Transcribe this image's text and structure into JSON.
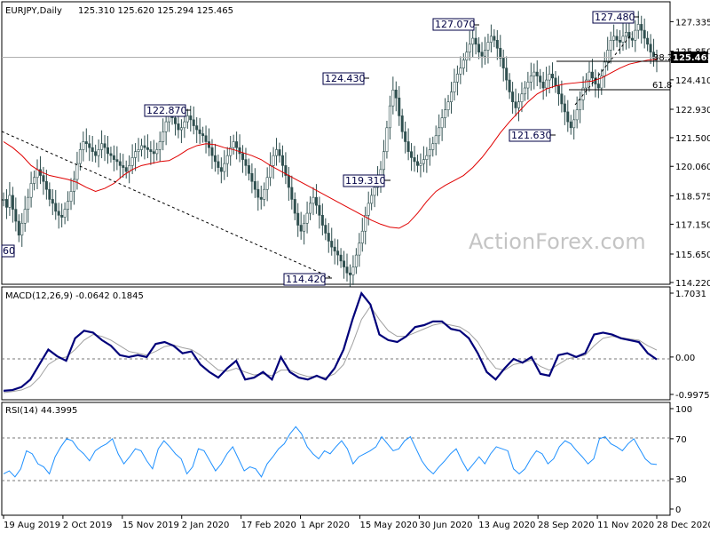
{
  "watermark": "ActionForex.com",
  "chart_data": [
    {
      "type": "candlestick",
      "title": "EURJPY,Daily",
      "ohlc_header": "125.310 125.620 125.294 125.465",
      "ylim": [
        114.22,
        128.2
      ],
      "yticks": [
        114.22,
        115.65,
        117.15,
        118.575,
        120.06,
        121.5,
        122.93,
        124.41,
        125.85,
        127.335
      ],
      "ytick_labels": [
        "114.220",
        "115.650",
        "117.150",
        "118.575",
        "120.060",
        "121.500",
        "122.930",
        "124.410",
        "125.850",
        "127.335"
      ],
      "last_price": 125.465,
      "last_price_label": "125.465",
      "xtick_labels": [
        "19 Aug 2019",
        "2 Oct 2019",
        "15 Nov 2019",
        "2 Jan 2020",
        "17 Feb 2020",
        "1 Apr 2020",
        "15 May 2020",
        "30 Jun 2020",
        "13 Aug 2020",
        "28 Sep 2020",
        "11 Nov 2020",
        "28 Dec 2020"
      ],
      "close_series": [
        118.4,
        118.0,
        118.6,
        117.9,
        117.3,
        116.6,
        117.2,
        117.9,
        118.5,
        119.2,
        119.5,
        119.9,
        119.6,
        119.3,
        118.9,
        118.4,
        118.2,
        117.8,
        117.6,
        117.5,
        117.9,
        118.3,
        118.8,
        119.4,
        120.2,
        120.9,
        121.3,
        121.2,
        121.0,
        120.8,
        120.6,
        120.9,
        121.2,
        121.0,
        120.7,
        120.6,
        120.4,
        120.3,
        120.1,
        120.0,
        119.8,
        120.1,
        120.5,
        120.8,
        120.9,
        121.1,
        121.0,
        120.9,
        120.8,
        120.7,
        120.9,
        121.3,
        121.8,
        122.3,
        122.6,
        122.5,
        122.2,
        121.9,
        122.0,
        122.3,
        122.6,
        122.4,
        122.1,
        121.9,
        121.7,
        121.6,
        121.3,
        121.0,
        120.6,
        120.3,
        120.0,
        119.8,
        120.2,
        120.6,
        121.0,
        121.3,
        121.0,
        120.7,
        120.4,
        120.1,
        119.7,
        119.3,
        118.9,
        118.5,
        118.4,
        118.9,
        119.5,
        120.1,
        120.6,
        120.9,
        120.6,
        120.1,
        119.6,
        119.0,
        118.4,
        117.7,
        117.1,
        116.8,
        117.2,
        117.7,
        118.2,
        118.5,
        118.1,
        117.6,
        117.1,
        116.7,
        116.3,
        116.0,
        115.8,
        115.6,
        115.3,
        115.0,
        114.7,
        114.6,
        115.0,
        115.6,
        116.2,
        116.8,
        117.6,
        118.2,
        118.6,
        119.0,
        119.4,
        119.9,
        120.8,
        122.0,
        123.1,
        123.9,
        123.5,
        122.6,
        121.8,
        121.3,
        120.8,
        120.5,
        120.3,
        120.1,
        120.2,
        120.4,
        120.6,
        120.9,
        121.2,
        121.6,
        122.0,
        122.5,
        122.9,
        123.3,
        123.8,
        124.3,
        124.7,
        125.0,
        125.4,
        125.8,
        126.2,
        126.5,
        126.2,
        125.8,
        125.6,
        125.9,
        126.3,
        126.6,
        126.4,
        126.0,
        125.5,
        125.0,
        124.4,
        123.8,
        123.3,
        123.0,
        123.3,
        123.7,
        124.0,
        124.3,
        124.6,
        124.8,
        124.6,
        124.3,
        124.0,
        124.4,
        124.7,
        124.5,
        124.1,
        123.7,
        123.2,
        122.8,
        122.3,
        122.0,
        122.4,
        122.9,
        123.4,
        124.0,
        124.4,
        124.8,
        124.5,
        124.2,
        124.0,
        124.6,
        125.3,
        125.9,
        126.4,
        126.6,
        126.4,
        126.3,
        126.6,
        126.8,
        126.5,
        126.4,
        126.9,
        127.2,
        126.9,
        126.5,
        126.2,
        125.8,
        125.5,
        125.465
      ],
      "ma_series": [
        121.3,
        121.0,
        120.6,
        120.1,
        119.8,
        119.6,
        119.5,
        119.4,
        119.25,
        119.0,
        118.8,
        118.95,
        119.2,
        119.6,
        119.9,
        120.1,
        120.2,
        120.3,
        120.35,
        120.6,
        120.9,
        121.1,
        121.2,
        121.15,
        121.0,
        120.9,
        120.75,
        120.6,
        120.4,
        120.1,
        119.85,
        119.6,
        119.35,
        119.1,
        118.85,
        118.6,
        118.35,
        118.1,
        117.85,
        117.6,
        117.35,
        117.15,
        117.0,
        116.95,
        117.2,
        117.7,
        118.3,
        118.8,
        119.1,
        119.35,
        119.6,
        120.0,
        120.5,
        121.1,
        121.75,
        122.3,
        122.8,
        123.3,
        123.7,
        123.95,
        124.1,
        124.2,
        124.25,
        124.3,
        124.35,
        124.5,
        124.75,
        125.0,
        125.2,
        125.3,
        125.4,
        125.45
      ],
      "annotations": [
        {
          "label": "122.870",
          "value": 122.87
        },
        {
          "label": "114.420",
          "value": 114.42
        },
        {
          "label": "124.430",
          "value": 124.43
        },
        {
          "label": "119.310",
          "value": 119.31
        },
        {
          "label": "127.070",
          "value": 127.07
        },
        {
          "label": "121.630",
          "value": 121.63
        },
        {
          "label": "127.480",
          "value": 127.48
        },
        {
          "label": "60",
          "value": null
        }
      ],
      "fib_labels": [
        {
          "label": "38.2",
          "value": 125.6
        },
        {
          "label": "61.8",
          "value": 124.0
        }
      ]
    },
    {
      "type": "line",
      "title": "MACD(12,26,9) -0.0642 0.1845",
      "ylim": [
        -0.9975,
        1.7031
      ],
      "ytick_labels": [
        "1.7031",
        "0.00",
        "-0.9975"
      ],
      "yticks": [
        1.7031,
        0.0,
        -0.9975
      ],
      "series": [
        {
          "name": "MACD",
          "values": [
            -0.9,
            -0.88,
            -0.8,
            -0.6,
            -0.2,
            0.2,
            0.02,
            -0.1,
            0.5,
            0.7,
            0.65,
            0.45,
            0.3,
            0.05,
            0.0,
            0.05,
            0.0,
            0.35,
            0.4,
            0.3,
            0.1,
            0.15,
            -0.2,
            -0.4,
            -0.55,
            -0.3,
            -0.1,
            -0.6,
            -0.55,
            -0.4,
            -0.6,
            0.0,
            -0.4,
            -0.55,
            -0.6,
            -0.5,
            -0.6,
            -0.3,
            0.2,
            1.0,
            1.7,
            1.4,
            0.6,
            0.45,
            0.4,
            0.55,
            0.8,
            0.85,
            0.95,
            0.95,
            0.75,
            0.7,
            0.5,
            0.1,
            -0.4,
            -0.6,
            -0.3,
            -0.05,
            -0.15,
            0.0,
            -0.45,
            -0.5,
            0.05,
            0.1,
            0.0,
            0.1,
            0.6,
            0.65,
            0.6,
            0.5,
            0.45,
            0.4,
            0.1,
            -0.0642
          ]
        },
        {
          "name": "Signal",
          "values": [
            -0.95,
            -0.92,
            -0.88,
            -0.78,
            -0.55,
            -0.2,
            -0.05,
            0.0,
            0.2,
            0.45,
            0.6,
            0.55,
            0.45,
            0.3,
            0.15,
            0.1,
            0.05,
            0.15,
            0.28,
            0.32,
            0.25,
            0.2,
            0.05,
            -0.15,
            -0.35,
            -0.38,
            -0.3,
            -0.4,
            -0.48,
            -0.45,
            -0.5,
            -0.35,
            -0.35,
            -0.45,
            -0.52,
            -0.52,
            -0.55,
            -0.45,
            -0.2,
            0.35,
            1.0,
            1.35,
            1.0,
            0.7,
            0.55,
            0.55,
            0.65,
            0.75,
            0.85,
            0.9,
            0.85,
            0.8,
            0.65,
            0.4,
            0.0,
            -0.3,
            -0.35,
            -0.2,
            -0.15,
            -0.08,
            -0.25,
            -0.35,
            -0.2,
            -0.05,
            0.0,
            0.05,
            0.3,
            0.5,
            0.55,
            0.52,
            0.48,
            0.45,
            0.3,
            0.1845
          ]
        }
      ]
    },
    {
      "type": "line",
      "title": "RSI(14) 44.3995",
      "ylim": [
        0,
        100
      ],
      "yticks": [
        0,
        30,
        70,
        100
      ],
      "ytick_labels": [
        "0",
        "30",
        "70",
        "100"
      ],
      "series": [
        {
          "name": "RSI",
          "values": [
            35,
            38,
            32,
            40,
            58,
            55,
            45,
            42,
            35,
            52,
            62,
            70,
            68,
            60,
            55,
            48,
            58,
            62,
            65,
            70,
            55,
            45,
            52,
            60,
            58,
            48,
            40,
            60,
            68,
            62,
            55,
            50,
            35,
            42,
            60,
            58,
            48,
            38,
            45,
            55,
            62,
            50,
            38,
            42,
            40,
            32,
            45,
            52,
            60,
            65,
            75,
            82,
            75,
            62,
            55,
            50,
            58,
            55,
            62,
            68,
            60,
            45,
            52,
            55,
            58,
            62,
            72,
            65,
            58,
            60,
            68,
            72,
            60,
            48,
            40,
            35,
            42,
            48,
            55,
            60,
            48,
            38,
            45,
            52,
            45,
            55,
            62,
            60,
            58,
            40,
            35,
            40,
            50,
            58,
            55,
            45,
            50,
            62,
            68,
            65,
            58,
            52,
            45,
            50,
            70,
            72,
            65,
            62,
            58,
            65,
            70,
            60,
            50,
            45,
            44.3995
          ]
        }
      ]
    }
  ]
}
